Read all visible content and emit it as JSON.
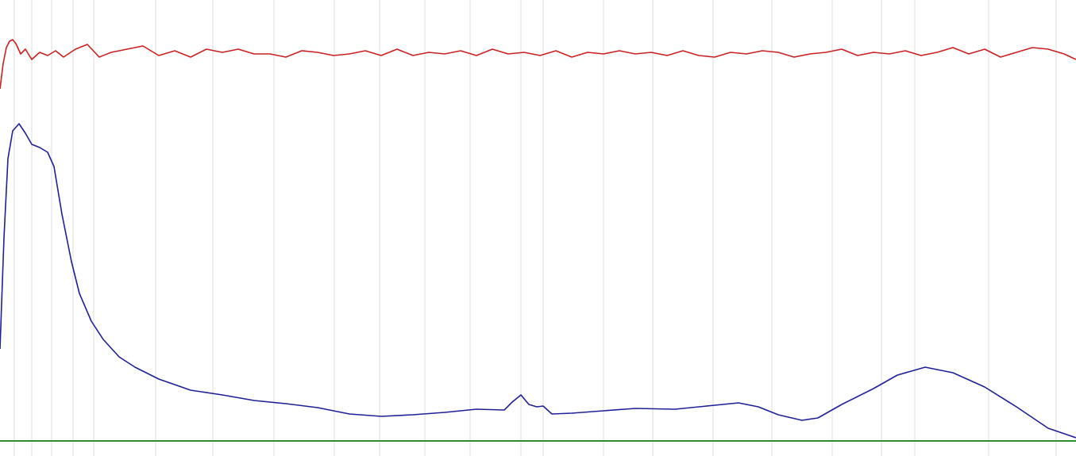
{
  "chart_data": {
    "type": "line",
    "xlim": [
      0,
      1355
    ],
    "ylim": [
      0,
      556
    ],
    "xticks": [
      18,
      40,
      65,
      92,
      118,
      196,
      268,
      345,
      421,
      478,
      535,
      592,
      656,
      684,
      760,
      822,
      898,
      972,
      1048,
      1110,
      1152,
      1245,
      1330
    ],
    "grid": true,
    "series": [
      {
        "color": "#cc1f1f",
        "x": [
          0,
          4,
          8,
          12,
          16,
          20,
          26,
          32,
          40,
          50,
          60,
          70,
          80,
          95,
          110,
          125,
          140,
          160,
          180,
          200,
          220,
          240,
          260,
          280,
          300,
          320,
          340,
          360,
          380,
          400,
          420,
          440,
          460,
          480,
          500,
          520,
          540,
          560,
          580,
          600,
          620,
          640,
          660,
          680,
          700,
          720,
          740,
          760,
          780,
          800,
          820,
          840,
          860,
          880,
          900,
          920,
          940,
          960,
          980,
          1000,
          1020,
          1040,
          1060,
          1080,
          1100,
          1120,
          1140,
          1160,
          1180,
          1200,
          1220,
          1240,
          1260,
          1280,
          1300,
          1320,
          1340,
          1355
        ],
        "values": [
          444,
          476,
          496,
          504,
          506,
          501,
          488,
          494,
          481,
          490,
          486,
          492,
          484,
          494,
          500,
          484,
          490,
          494,
          498,
          486,
          492,
          484,
          494,
          490,
          494,
          488,
          488,
          484,
          492,
          490,
          486,
          488,
          492,
          486,
          494,
          486,
          490,
          488,
          492,
          486,
          494,
          488,
          490,
          486,
          492,
          484,
          490,
          488,
          492,
          488,
          490,
          486,
          492,
          486,
          484,
          490,
          488,
          492,
          490,
          484,
          488,
          490,
          494,
          486,
          490,
          488,
          492,
          486,
          490,
          496,
          488,
          494,
          484,
          490,
          496,
          494,
          488,
          481
        ]
      },
      {
        "color": "#1f1f99",
        "x": [
          0,
          5,
          10,
          16,
          24,
          32,
          40,
          50,
          60,
          68,
          78,
          90,
          100,
          115,
          130,
          150,
          170,
          200,
          240,
          280,
          320,
          360,
          400,
          440,
          480,
          520,
          560,
          600,
          635,
          645,
          656,
          666,
          676,
          684,
          695,
          720,
          760,
          800,
          850,
          900,
          930,
          955,
          980,
          1010,
          1030,
          1060,
          1100,
          1130,
          1165,
          1200,
          1240,
          1280,
          1320,
          1355
        ],
        "values": [
          116,
          256,
          356,
          391,
          400,
          388,
          374,
          370,
          364,
          346,
          286,
          226,
          186,
          151,
          128,
          106,
          93,
          78,
          64,
          58,
          51,
          47,
          42,
          34,
          31,
          33,
          36,
          40,
          39,
          49,
          58,
          46,
          43,
          44,
          34,
          35,
          38,
          41,
          40,
          45,
          48,
          43,
          33,
          26,
          29,
          46,
          66,
          83,
          93,
          86,
          68,
          43,
          16,
          4
        ]
      }
    ]
  }
}
